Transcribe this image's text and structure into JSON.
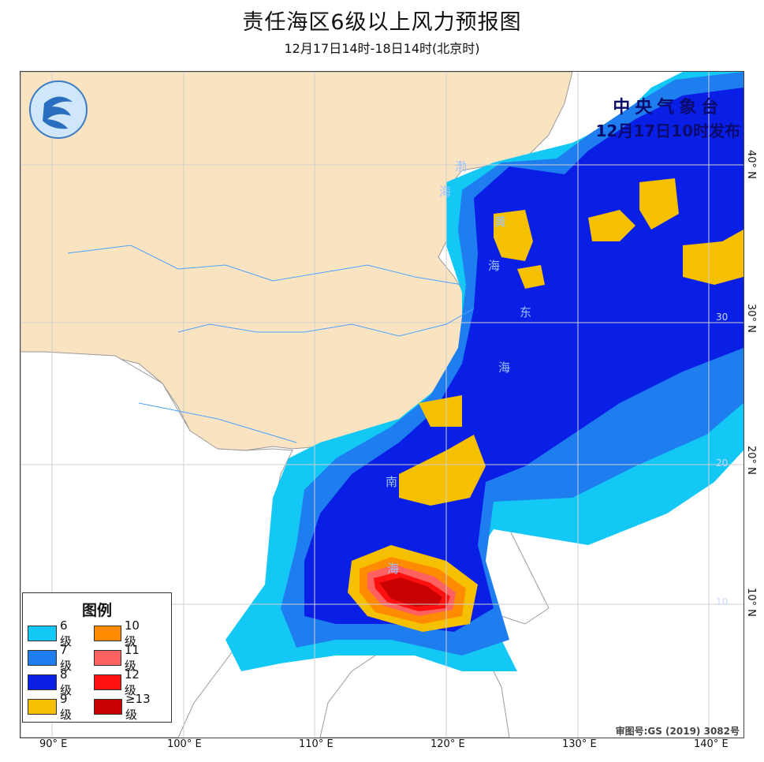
{
  "title": "责任海区6级以上风力预报图",
  "subtitle": "12月17日14时-18日14时(北京时)",
  "issuer": {
    "org": "中央气象台",
    "time": "12月17日10时发布"
  },
  "logo_icon": "cma-logo-icon",
  "approval": "审图号:GS (2019) 3082号",
  "legend": {
    "title": "图例",
    "items": [
      {
        "label": "6级",
        "color": "#14c8f5"
      },
      {
        "label": "10级",
        "color": "#ff8c00"
      },
      {
        "label": "7级",
        "color": "#1e7ef0"
      },
      {
        "label": "11级",
        "color": "#ff6060"
      },
      {
        "label": "8级",
        "color": "#0a1fe6"
      },
      {
        "label": "12级",
        "color": "#ff1010"
      },
      {
        "label": "9级",
        "color": "#f5c000"
      },
      {
        "label": "≥13级",
        "color": "#c80000"
      }
    ]
  },
  "axis": {
    "lon": [
      "90° E",
      "100° E",
      "110° E",
      "120° E",
      "130° E",
      "140° E"
    ],
    "lat": [
      "40° N",
      "30° N",
      "20° N",
      "10° N"
    ],
    "grid_lat_marks": [
      "30",
      "20",
      "10"
    ]
  },
  "sea_labels": [
    "渤",
    "海",
    "黄",
    "海",
    "东",
    "海",
    "南",
    "海"
  ],
  "colors": {
    "land_china": "#fae3c0",
    "land_other": "#ffffff",
    "border": "#999999",
    "river": "#4aa3ff"
  }
}
